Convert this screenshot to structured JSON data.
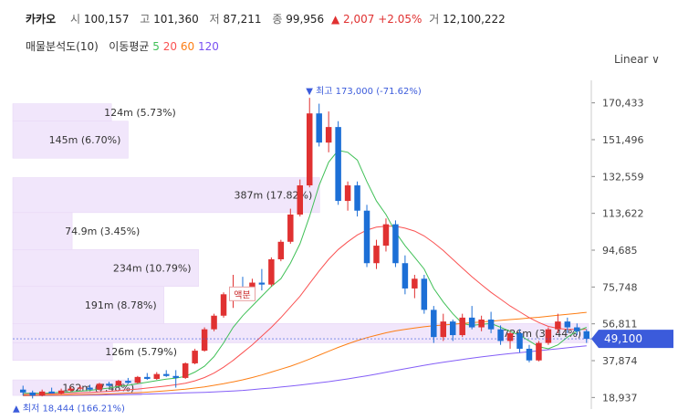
{
  "header": {
    "name": "카카오",
    "open_label": "시",
    "open": "100,157",
    "high_label": "고",
    "high": "101,360",
    "low_label": "저",
    "low": "87,211",
    "close_label": "종",
    "close": "99,956",
    "change": "▲ 2,007 +2.05%",
    "volume_label": "거",
    "volume": "12,100,222"
  },
  "indicators": {
    "volume_profile": "매물분석도(10)",
    "ma_label": "이동평균",
    "ma5": "5",
    "ma20": "20",
    "ma60": "60",
    "ma120": "120"
  },
  "scale_toggle": "Linear ∨",
  "colors": {
    "up": "#e03131",
    "down": "#1c6fd6",
    "ma5": "#40c057",
    "ma20": "#fa5252",
    "ma60": "#fd7e14",
    "ma120": "#845ef7",
    "profile": "#f1e6fb",
    "current": "#3b5bdb"
  },
  "chart_data": {
    "type": "candlestick",
    "y_ticks": [
      "170,433",
      "151,496",
      "132,559",
      "113,622",
      "94,685",
      "75,748",
      "56,811",
      "37,874",
      "18,937"
    ],
    "y_tick_values": [
      170433,
      151496,
      132559,
      113622,
      94685,
      75748,
      56811,
      37874,
      18937
    ],
    "ylim": [
      13000,
      182000
    ],
    "current_price": 49100,
    "current_price_label": "49,100",
    "high_annotation": "▼ 최고 173,000 (-71.62%)",
    "low_annotation": "▲ 최저 18,444 (166.21%)",
    "high_value": 173000,
    "low_value": 18444,
    "event_label": "액분",
    "volume_profile": [
      {
        "label": "124m (5.73%)",
        "from": 161000,
        "to": 170000,
        "share": 5.73
      },
      {
        "label": "145m (6.70%)",
        "from": 142000,
        "to": 161000,
        "share": 6.7
      },
      {
        "label": "387m (17.82%)",
        "from": 114000,
        "to": 132000,
        "share": 17.82
      },
      {
        "label": "74.9m (3.45%)",
        "from": 95000,
        "to": 114000,
        "share": 3.45
      },
      {
        "label": "234m (10.79%)",
        "from": 76000,
        "to": 95000,
        "share": 10.79
      },
      {
        "label": "191m (8.78%)",
        "from": 57000,
        "to": 76000,
        "share": 8.78
      },
      {
        "label": "726m (33.44%)",
        "from": 47000,
        "to": 57000,
        "share": 33.44
      },
      {
        "label": "126m (5.79%)",
        "from": 38000,
        "to": 47000,
        "share": 5.79
      },
      {
        "label": "162m (7.48%)",
        "from": 20000,
        "to": 28000,
        "share": 7.48
      }
    ],
    "candles": [
      [
        23000,
        25000,
        20000,
        21500
      ],
      [
        21500,
        22500,
        18444,
        20000
      ],
      [
        20000,
        23000,
        19500,
        22000
      ],
      [
        22000,
        24000,
        21000,
        21000
      ],
      [
        21000,
        23500,
        20500,
        22500
      ],
      [
        22500,
        24500,
        22000,
        23500
      ],
      [
        23500,
        25000,
        22500,
        24000
      ],
      [
        24000,
        25500,
        23000,
        23000
      ],
      [
        23000,
        26500,
        22500,
        26000
      ],
      [
        26000,
        27000,
        24500,
        25000
      ],
      [
        25000,
        28000,
        24800,
        27500
      ],
      [
        27500,
        29000,
        26000,
        26500
      ],
      [
        26500,
        30000,
        26000,
        29500
      ],
      [
        29500,
        31500,
        28000,
        28500
      ],
      [
        28500,
        32000,
        28000,
        31000
      ],
      [
        31000,
        33000,
        29500,
        30000
      ],
      [
        30000,
        33000,
        24000,
        29000
      ],
      [
        29000,
        37000,
        28500,
        36500
      ],
      [
        36500,
        44000,
        36000,
        43000
      ],
      [
        43000,
        55000,
        42500,
        54000
      ],
      [
        54000,
        62000,
        53000,
        61000
      ],
      [
        61000,
        73000,
        60000,
        72000
      ],
      [
        72000,
        82000,
        65000,
        74000
      ],
      [
        74000,
        81000,
        69000,
        72000
      ],
      [
        72000,
        80000,
        70000,
        78000
      ],
      [
        78000,
        85000,
        74000,
        77000
      ],
      [
        77000,
        91000,
        76000,
        90000
      ],
      [
        90000,
        100000,
        89000,
        99000
      ],
      [
        99000,
        116000,
        98000,
        113000
      ],
      [
        113000,
        131000,
        112000,
        128000
      ],
      [
        128000,
        173000,
        127000,
        165000
      ],
      [
        165000,
        170000,
        148000,
        150000
      ],
      [
        150000,
        166000,
        145000,
        158000
      ],
      [
        158000,
        161000,
        118000,
        120000
      ],
      [
        120000,
        130000,
        115000,
        128000
      ],
      [
        128000,
        130000,
        112000,
        115000
      ],
      [
        115000,
        118000,
        86000,
        88000
      ],
      [
        88000,
        100000,
        85000,
        97000
      ],
      [
        97000,
        111000,
        94000,
        108000
      ],
      [
        108000,
        110000,
        86000,
        88000
      ],
      [
        88000,
        92000,
        72000,
        75000
      ],
      [
        75000,
        82000,
        70000,
        80000
      ],
      [
        80000,
        82000,
        62000,
        64000
      ],
      [
        64000,
        66000,
        47000,
        50000
      ],
      [
        50000,
        62000,
        48000,
        58000
      ],
      [
        58000,
        59000,
        48000,
        51000
      ],
      [
        51000,
        62000,
        50000,
        60000
      ],
      [
        60000,
        66000,
        54000,
        55000
      ],
      [
        55000,
        61000,
        53000,
        59000
      ],
      [
        59000,
        63000,
        52000,
        54000
      ],
      [
        54000,
        56000,
        46000,
        48000
      ],
      [
        48000,
        53000,
        44000,
        52000
      ],
      [
        52000,
        54000,
        42000,
        44000
      ],
      [
        44000,
        46000,
        37000,
        38000
      ],
      [
        38000,
        48000,
        37500,
        47000
      ],
      [
        47000,
        55000,
        46000,
        54000
      ],
      [
        54000,
        62000,
        52000,
        58000
      ],
      [
        58000,
        60000,
        52000,
        55000
      ],
      [
        55000,
        57000,
        51000,
        53000
      ],
      [
        53000,
        54000,
        47000,
        49100
      ]
    ],
    "ma5": [
      21000,
      21200,
      21000,
      21300,
      21500,
      21800,
      22200,
      22600,
      23200,
      23800,
      24600,
      25200,
      26000,
      26800,
      27600,
      28400,
      28900,
      29800,
      32000,
      35000,
      40000,
      47000,
      55000,
      61000,
      66000,
      71000,
      76000,
      80000,
      88000,
      98000,
      112000,
      128000,
      140000,
      146000,
      145000,
      141000,
      130000,
      120000,
      113000,
      104000,
      97000,
      91000,
      85000,
      75000,
      68000,
      62000,
      57000,
      56000,
      56500,
      57000,
      55000,
      53000,
      51000,
      48000,
      45000,
      44000,
      46000,
      50000,
      53000,
      55000
    ],
    "ma20": [
      20500,
      20600,
      20700,
      20800,
      20900,
      21100,
      21300,
      21500,
      21800,
      22100,
      22500,
      22900,
      23300,
      23800,
      24300,
      24900,
      25500,
      26300,
      27500,
      29200,
      31500,
      34500,
      38000,
      42000,
      46000,
      50500,
      55000,
      60000,
      65500,
      71000,
      77500,
      84000,
      90000,
      95000,
      99000,
      102500,
      105000,
      106500,
      107000,
      107000,
      106000,
      104500,
      102000,
      98500,
      94500,
      90000,
      85500,
      81000,
      77000,
      73000,
      69500,
      66000,
      63000,
      60000,
      57500,
      55500,
      54500,
      54000,
      54000,
      54000
    ],
    "ma60": [
      20000,
      20050,
      20100,
      20150,
      20200,
      20300,
      20400,
      20500,
      20600,
      20800,
      21000,
      21200,
      21400,
      21700,
      22000,
      22400,
      22800,
      23200,
      23800,
      24400,
      25200,
      26000,
      27000,
      28000,
      29200,
      30500,
      32000,
      33500,
      35000,
      36800,
      38700,
      40700,
      42700,
      44700,
      46500,
      48200,
      49700,
      51000,
      52200,
      53200,
      54000,
      54700,
      55300,
      55800,
      56200,
      56600,
      57000,
      57400,
      57800,
      58200,
      58600,
      59000,
      59400,
      59800,
      60200,
      60700,
      61200,
      61700,
      62200,
      62700
    ],
    "ma120": [
      19800,
      19850,
      19900,
      19950,
      20000,
      20050,
      20100,
      20150,
      20200,
      20300,
      20400,
      20500,
      20600,
      20700,
      20850,
      21000,
      21150,
      21300,
      21450,
      21600,
      21800,
      22000,
      22300,
      22600,
      23000,
      23400,
      23800,
      24300,
      24800,
      25300,
      25900,
      26500,
      27100,
      27800,
      28500,
      29300,
      30100,
      31000,
      31900,
      32800,
      33700,
      34600,
      35500,
      36300,
      37100,
      37800,
      38500,
      39200,
      39800,
      40400,
      41000,
      41500,
      42000,
      42500,
      43000,
      43500,
      44000,
      44500,
      45000,
      45500
    ]
  }
}
